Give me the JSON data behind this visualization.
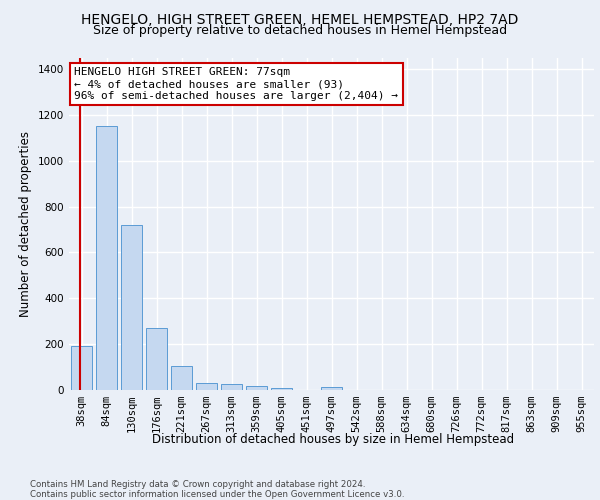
{
  "title_line1": "HENGELO, HIGH STREET GREEN, HEMEL HEMPSTEAD, HP2 7AD",
  "title_line2": "Size of property relative to detached houses in Hemel Hempstead",
  "xlabel": "Distribution of detached houses by size in Hemel Hempstead",
  "ylabel": "Number of detached properties",
  "categories": [
    "38sqm",
    "84sqm",
    "130sqm",
    "176sqm",
    "221sqm",
    "267sqm",
    "313sqm",
    "359sqm",
    "405sqm",
    "451sqm",
    "497sqm",
    "542sqm",
    "588sqm",
    "634sqm",
    "680sqm",
    "726sqm",
    "772sqm",
    "817sqm",
    "863sqm",
    "909sqm",
    "955sqm"
  ],
  "values": [
    190,
    1150,
    720,
    270,
    105,
    32,
    28,
    18,
    10,
    0,
    13,
    0,
    0,
    0,
    0,
    0,
    0,
    0,
    0,
    0,
    0
  ],
  "bar_color": "#c5d8f0",
  "bar_edge_color": "#5b9bd5",
  "vline_color": "#cc0000",
  "annotation_text": "HENGELO HIGH STREET GREEN: 77sqm\n← 4% of detached houses are smaller (93)\n96% of semi-detached houses are larger (2,404) →",
  "annotation_box_color": "white",
  "annotation_box_edge_color": "#cc0000",
  "ylim": [
    0,
    1450
  ],
  "yticks": [
    0,
    200,
    400,
    600,
    800,
    1000,
    1200,
    1400
  ],
  "bg_color": "#eaeff7",
  "plot_bg_color": "#eaeff7",
  "grid_color": "white",
  "footnote": "Contains HM Land Registry data © Crown copyright and database right 2024.\nContains public sector information licensed under the Open Government Licence v3.0.",
  "title_fontsize": 10,
  "subtitle_fontsize": 9,
  "axis_label_fontsize": 8.5,
  "tick_fontsize": 7.5,
  "annotation_fontsize": 8
}
